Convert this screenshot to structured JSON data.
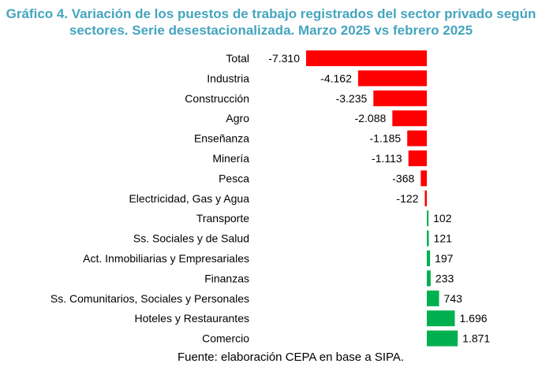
{
  "chart_data": {
    "type": "bar",
    "orientation": "horizontal",
    "title": "Gráfico 4. Variación de los puestos de trabajo registrados del sector privado según sectores. Serie desestacionalizada. Marzo 2025 vs febrero 2025",
    "categories": [
      "Total",
      "Industria",
      "Construcción",
      "Agro",
      "Enseñanza",
      "Minería",
      "Pesca",
      "Electricidad, Gas y Agua",
      "Transporte",
      "Ss. Sociales y de Salud",
      "Act. Inmobiliarias y Empresariales",
      "Finanzas",
      "Ss. Comunitarios, Sociales y Personales",
      "Hoteles y Restaurantes",
      "Comercio"
    ],
    "values": [
      -7310,
      -4162,
      -3235,
      -2088,
      -1185,
      -1113,
      -368,
      -122,
      102,
      121,
      197,
      233,
      743,
      1696,
      1871
    ],
    "data_labels": [
      "-7.310",
      "-4.162",
      "-3.235",
      "-2.088",
      "-1.185",
      "-1.113",
      "-368",
      "-122",
      "102",
      "121",
      "197",
      "233",
      "743",
      "1.696",
      "1.871"
    ],
    "colors": {
      "negative": "#ff0000",
      "positive": "#00b050"
    },
    "grid": false,
    "legend": "none"
  },
  "source": "Fuente: elaboración CEPA en base a SIPA."
}
